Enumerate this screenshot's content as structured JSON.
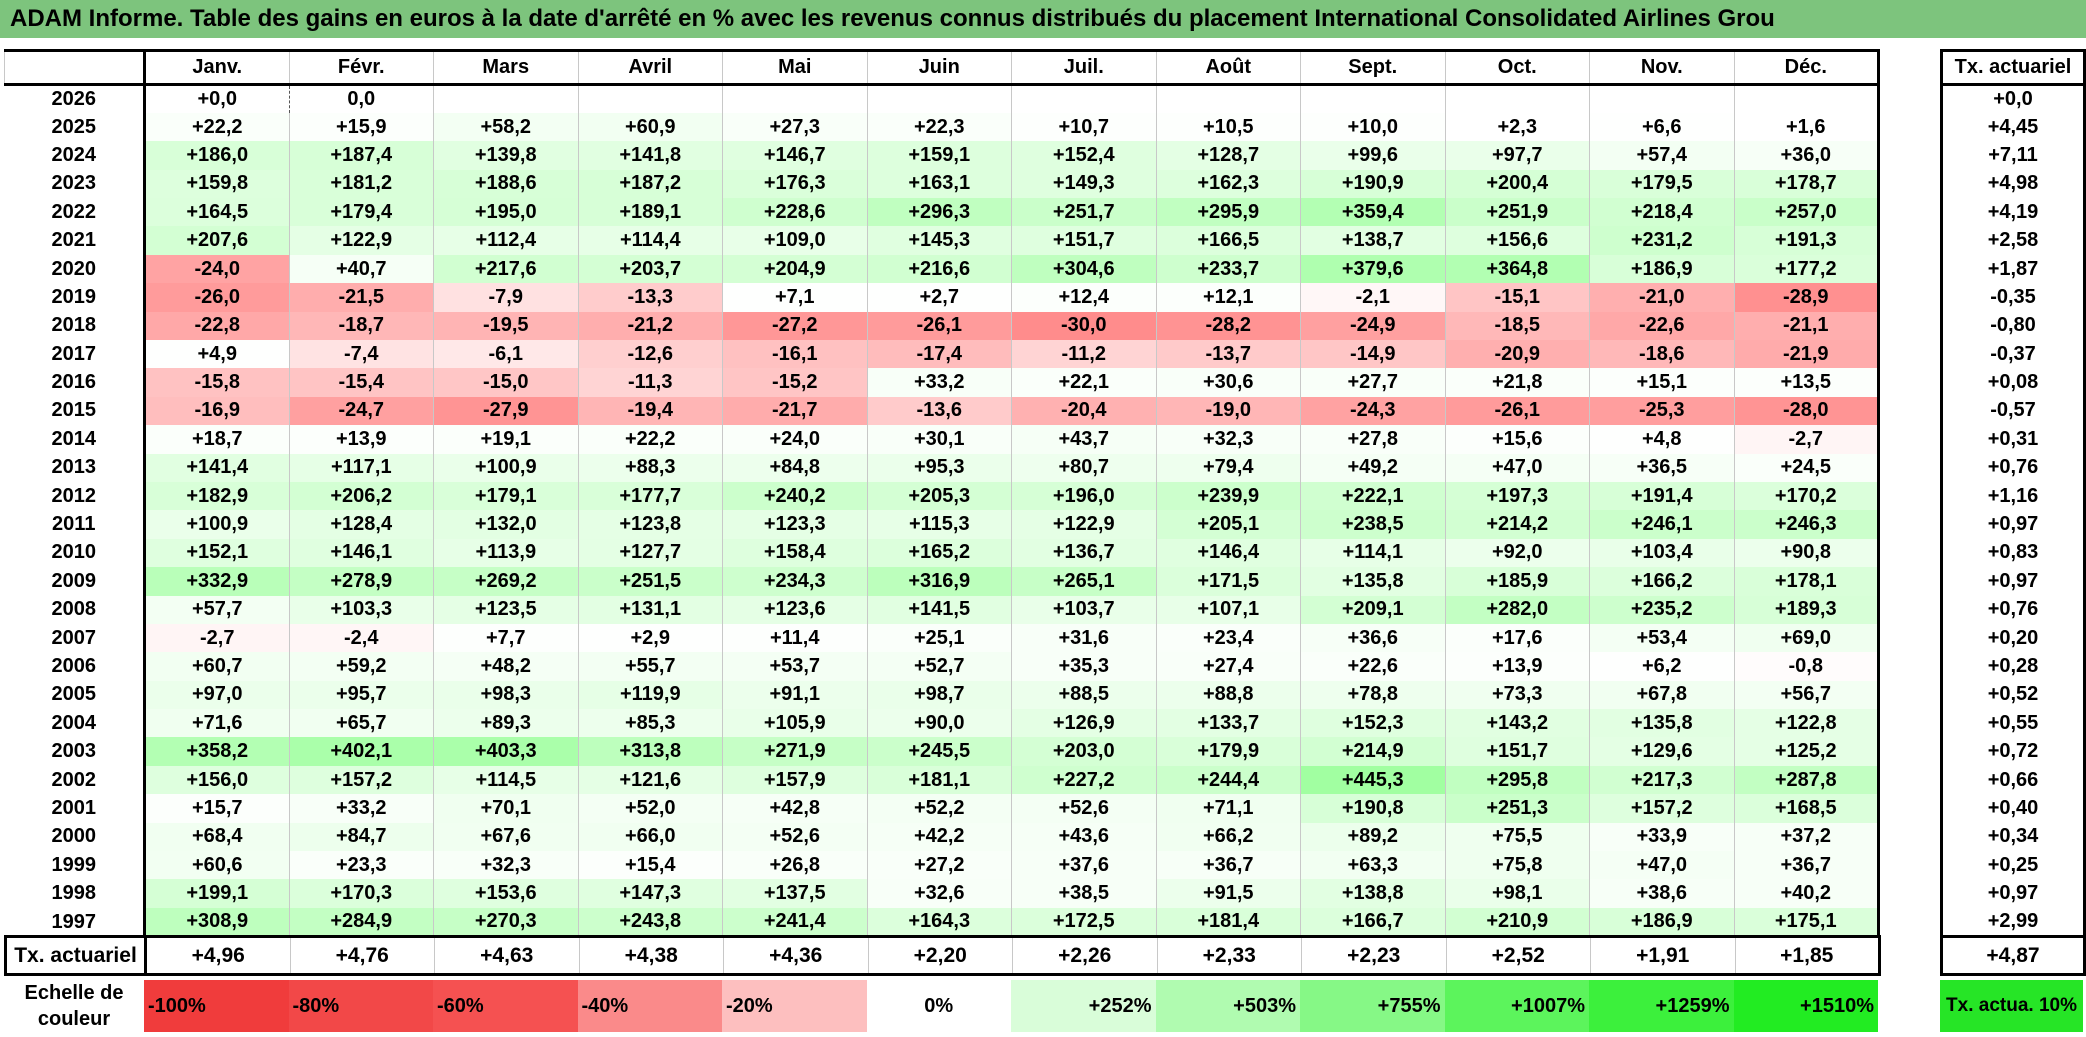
{
  "title": "ADAM Informe. Table des gains en euros à la date d'arrêté en % avec les revenus connus distribués du placement International Consolidated Airlines Grou",
  "chart_data": {
    "type": "heatmap",
    "title": "ADAM Informe. Table des gains en euros à la date d'arrêté en % avec les revenus connus distribués du placement International Consolidated Airlines Grou",
    "columns": [
      "Janv.",
      "Févr.",
      "Mars",
      "Avril",
      "Mai",
      "Juin",
      "Juil.",
      "Août",
      "Sept.",
      "Oct.",
      "Nov.",
      "Déc."
    ],
    "rate_header": "Tx. actuariel",
    "rows": [
      {
        "year": "2026",
        "cells": [
          "+0,0",
          "0,0",
          "",
          "",
          "",
          "",
          "",
          "",
          "",
          "",
          "",
          ""
        ],
        "rate": "+0,0"
      },
      {
        "year": "2025",
        "cells": [
          "+22,2",
          "+15,9",
          "+58,2",
          "+60,9",
          "+27,3",
          "+22,3",
          "+10,7",
          "+10,5",
          "+10,0",
          "+2,3",
          "+6,6",
          "+1,6"
        ],
        "rate": "+4,45"
      },
      {
        "year": "2024",
        "cells": [
          "+186,0",
          "+187,4",
          "+139,8",
          "+141,8",
          "+146,7",
          "+159,1",
          "+152,4",
          "+128,7",
          "+99,6",
          "+97,7",
          "+57,4",
          "+36,0"
        ],
        "rate": "+7,11"
      },
      {
        "year": "2023",
        "cells": [
          "+159,8",
          "+181,2",
          "+188,6",
          "+187,2",
          "+176,3",
          "+163,1",
          "+149,3",
          "+162,3",
          "+190,9",
          "+200,4",
          "+179,5",
          "+178,7"
        ],
        "rate": "+4,98"
      },
      {
        "year": "2022",
        "cells": [
          "+164,5",
          "+179,4",
          "+195,0",
          "+189,1",
          "+228,6",
          "+296,3",
          "+251,7",
          "+295,9",
          "+359,4",
          "+251,9",
          "+218,4",
          "+257,0"
        ],
        "rate": "+4,19"
      },
      {
        "year": "2021",
        "cells": [
          "+207,6",
          "+122,9",
          "+112,4",
          "+114,4",
          "+109,0",
          "+145,3",
          "+151,7",
          "+166,5",
          "+138,7",
          "+156,6",
          "+231,2",
          "+191,3"
        ],
        "rate": "+2,58"
      },
      {
        "year": "2020",
        "cells": [
          "-24,0",
          "+40,7",
          "+217,6",
          "+203,7",
          "+204,9",
          "+216,6",
          "+304,6",
          "+233,7",
          "+379,6",
          "+364,8",
          "+186,9",
          "+177,2"
        ],
        "rate": "+1,87"
      },
      {
        "year": "2019",
        "cells": [
          "-26,0",
          "-21,5",
          "-7,9",
          "-13,3",
          "+7,1",
          "+2,7",
          "+12,4",
          "+12,1",
          "-2,1",
          "-15,1",
          "-21,0",
          "-28,9"
        ],
        "rate": "-0,35"
      },
      {
        "year": "2018",
        "cells": [
          "-22,8",
          "-18,7",
          "-19,5",
          "-21,2",
          "-27,2",
          "-26,1",
          "-30,0",
          "-28,2",
          "-24,9",
          "-18,5",
          "-22,6",
          "-21,1"
        ],
        "rate": "-0,80"
      },
      {
        "year": "2017",
        "cells": [
          "+4,9",
          "-7,4",
          "-6,1",
          "-12,6",
          "-16,1",
          "-17,4",
          "-11,2",
          "-13,7",
          "-14,9",
          "-20,9",
          "-18,6",
          "-21,9"
        ],
        "rate": "-0,37"
      },
      {
        "year": "2016",
        "cells": [
          "-15,8",
          "-15,4",
          "-15,0",
          "-11,3",
          "-15,2",
          "+33,2",
          "+22,1",
          "+30,6",
          "+27,7",
          "+21,8",
          "+15,1",
          "+13,5"
        ],
        "rate": "+0,08"
      },
      {
        "year": "2015",
        "cells": [
          "-16,9",
          "-24,7",
          "-27,9",
          "-19,4",
          "-21,7",
          "-13,6",
          "-20,4",
          "-19,0",
          "-24,3",
          "-26,1",
          "-25,3",
          "-28,0"
        ],
        "rate": "-0,57"
      },
      {
        "year": "2014",
        "cells": [
          "+18,7",
          "+13,9",
          "+19,1",
          "+22,2",
          "+24,0",
          "+30,1",
          "+43,7",
          "+32,3",
          "+27,8",
          "+15,6",
          "+4,8",
          "-2,7"
        ],
        "rate": "+0,31"
      },
      {
        "year": "2013",
        "cells": [
          "+141,4",
          "+117,1",
          "+100,9",
          "+88,3",
          "+84,8",
          "+95,3",
          "+80,7",
          "+79,4",
          "+49,2",
          "+47,0",
          "+36,5",
          "+24,5"
        ],
        "rate": "+0,76"
      },
      {
        "year": "2012",
        "cells": [
          "+182,9",
          "+206,2",
          "+179,1",
          "+177,7",
          "+240,2",
          "+205,3",
          "+196,0",
          "+239,9",
          "+222,1",
          "+197,3",
          "+191,4",
          "+170,2"
        ],
        "rate": "+1,16"
      },
      {
        "year": "2011",
        "cells": [
          "+100,9",
          "+128,4",
          "+132,0",
          "+123,8",
          "+123,3",
          "+115,3",
          "+122,9",
          "+205,1",
          "+238,5",
          "+214,2",
          "+246,1",
          "+246,3"
        ],
        "rate": "+0,97"
      },
      {
        "year": "2010",
        "cells": [
          "+152,1",
          "+146,1",
          "+113,9",
          "+127,7",
          "+158,4",
          "+165,2",
          "+136,7",
          "+146,4",
          "+114,1",
          "+92,0",
          "+103,4",
          "+90,8"
        ],
        "rate": "+0,83"
      },
      {
        "year": "2009",
        "cells": [
          "+332,9",
          "+278,9",
          "+269,2",
          "+251,5",
          "+234,3",
          "+316,9",
          "+265,1",
          "+171,5",
          "+135,8",
          "+185,9",
          "+166,2",
          "+178,1"
        ],
        "rate": "+0,97"
      },
      {
        "year": "2008",
        "cells": [
          "+57,7",
          "+103,3",
          "+123,5",
          "+131,1",
          "+123,6",
          "+141,5",
          "+103,7",
          "+107,1",
          "+209,1",
          "+282,0",
          "+235,2",
          "+189,3"
        ],
        "rate": "+0,76"
      },
      {
        "year": "2007",
        "cells": [
          "-2,7",
          "-2,4",
          "+7,7",
          "+2,9",
          "+11,4",
          "+25,1",
          "+31,6",
          "+23,4",
          "+36,6",
          "+17,6",
          "+53,4",
          "+69,0"
        ],
        "rate": "+0,20"
      },
      {
        "year": "2006",
        "cells": [
          "+60,7",
          "+59,2",
          "+48,2",
          "+55,7",
          "+53,7",
          "+52,7",
          "+35,3",
          "+27,4",
          "+22,6",
          "+13,9",
          "+6,2",
          "-0,8"
        ],
        "rate": "+0,28"
      },
      {
        "year": "2005",
        "cells": [
          "+97,0",
          "+95,7",
          "+98,3",
          "+119,9",
          "+91,1",
          "+98,7",
          "+88,5",
          "+88,8",
          "+78,8",
          "+73,3",
          "+67,8",
          "+56,7"
        ],
        "rate": "+0,52"
      },
      {
        "year": "2004",
        "cells": [
          "+71,6",
          "+65,7",
          "+89,3",
          "+85,3",
          "+105,9",
          "+90,0",
          "+126,9",
          "+133,7",
          "+152,3",
          "+143,2",
          "+135,8",
          "+122,8"
        ],
        "rate": "+0,55"
      },
      {
        "year": "2003",
        "cells": [
          "+358,2",
          "+402,1",
          "+403,3",
          "+313,8",
          "+271,9",
          "+245,5",
          "+203,0",
          "+179,9",
          "+214,9",
          "+151,7",
          "+129,6",
          "+125,2"
        ],
        "rate": "+0,72"
      },
      {
        "year": "2002",
        "cells": [
          "+156,0",
          "+157,2",
          "+114,5",
          "+121,6",
          "+157,9",
          "+181,1",
          "+227,2",
          "+244,4",
          "+445,3",
          "+295,8",
          "+217,3",
          "+287,8"
        ],
        "rate": "+0,66"
      },
      {
        "year": "2001",
        "cells": [
          "+15,7",
          "+33,2",
          "+70,1",
          "+52,0",
          "+42,8",
          "+52,2",
          "+52,6",
          "+71,1",
          "+190,8",
          "+251,3",
          "+157,2",
          "+168,5"
        ],
        "rate": "+0,40"
      },
      {
        "year": "2000",
        "cells": [
          "+68,4",
          "+84,7",
          "+67,6",
          "+66,0",
          "+52,6",
          "+42,2",
          "+43,6",
          "+66,2",
          "+89,2",
          "+75,5",
          "+33,9",
          "+37,2"
        ],
        "rate": "+0,34"
      },
      {
        "year": "1999",
        "cells": [
          "+60,6",
          "+23,3",
          "+32,3",
          "+15,4",
          "+26,8",
          "+27,2",
          "+37,6",
          "+36,7",
          "+63,3",
          "+75,8",
          "+47,0",
          "+36,7"
        ],
        "rate": "+0,25"
      },
      {
        "year": "1998",
        "cells": [
          "+199,1",
          "+170,3",
          "+153,6",
          "+147,3",
          "+137,5",
          "+32,6",
          "+38,5",
          "+91,5",
          "+138,8",
          "+98,1",
          "+38,6",
          "+40,2"
        ],
        "rate": "+0,97"
      },
      {
        "year": "1997",
        "cells": [
          "+308,9",
          "+284,9",
          "+270,3",
          "+243,8",
          "+241,4",
          "+164,3",
          "+172,5",
          "+181,4",
          "+166,7",
          "+210,9",
          "+186,9",
          "+175,1"
        ],
        "rate": "+2,99"
      }
    ],
    "summary": {
      "label": "Tx. actuariel",
      "values": [
        "+4,96",
        "+4,76",
        "+4,63",
        "+4,38",
        "+4,36",
        "+2,20",
        "+2,26",
        "+2,33",
        "+2,23",
        "+2,52",
        "+1,91",
        "+1,85"
      ],
      "rate": "+4,87"
    },
    "scale": {
      "label": "Echelle de couleur",
      "steps": [
        {
          "label": "-100%",
          "color": "#f03c3c",
          "align": "left"
        },
        {
          "label": "-80%",
          "color": "#f24848",
          "align": "left"
        },
        {
          "label": "-60%",
          "color": "#f55151",
          "align": "left"
        },
        {
          "label": "-40%",
          "color": "#fa8a8a",
          "align": "left"
        },
        {
          "label": "-20%",
          "color": "#fdbfbf",
          "align": "left"
        },
        {
          "label": "0%",
          "color": "#ffffff",
          "align": "center"
        },
        {
          "label": "+252%",
          "color": "#d9fdd9",
          "align": "right"
        },
        {
          "label": "+503%",
          "color": "#b0fbb0",
          "align": "right"
        },
        {
          "label": "+755%",
          "color": "#86f886",
          "align": "right"
        },
        {
          "label": "+1007%",
          "color": "#5cf45c",
          "align": "right"
        },
        {
          "label": "+1259%",
          "color": "#3cf03c",
          "align": "right"
        },
        {
          "label": "+1510%",
          "color": "#22ec22",
          "align": "right"
        }
      ],
      "rate_label": "Tx. actua. 10%"
    }
  }
}
